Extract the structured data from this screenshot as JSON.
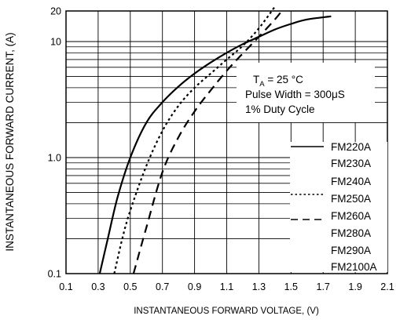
{
  "chart_data": {
    "type": "line",
    "title": "",
    "xlabel": "INSTANTANEOUS FORWARD VOLTAGE, (V)",
    "ylabel": "INSTANTANEOUS FORWARD CURRENT, (A)",
    "xlim": [
      0.1,
      2.1
    ],
    "ylim": [
      0.1,
      20
    ],
    "y_scale": "log",
    "grid": true,
    "x_ticks": [
      "0.1",
      "0.3",
      "0.5",
      "0.7",
      "0.9",
      "1.1",
      "1.3",
      "1.5",
      "1.7",
      "1.9",
      "2.1"
    ],
    "y_ticks": [
      {
        "value": 0.1,
        "label": "0.1"
      },
      {
        "value": 1.0,
        "label": "1.0"
      },
      {
        "value": 10,
        "label": "10"
      },
      {
        "value": 20,
        "label": "20"
      }
    ],
    "annotation": {
      "ta_prefix": "T",
      "ta_sub": "A",
      "ta_suffix": " = 25 °C",
      "pulse_width": "Pulse Width = 300μS",
      "duty_cycle": "1% Duty Cycle"
    },
    "legend": {
      "placement": "bottom-right",
      "groups": [
        {
          "style": "solid",
          "labels": [
            "FM220A",
            "FM230A",
            "FM240A"
          ]
        },
        {
          "style": "dotted",
          "labels": [
            "FM250A"
          ]
        },
        {
          "style": "dashed",
          "labels": [
            "FM260A",
            "FM280A",
            "FM290A",
            "FM2100A"
          ]
        }
      ]
    },
    "series": [
      {
        "style": "solid",
        "x": [
          0.31,
          0.36,
          0.42,
          0.5,
          0.6,
          0.7,
          0.8,
          0.9,
          1.0,
          1.1,
          1.2,
          1.3,
          1.4,
          1.5,
          1.6,
          1.75
        ],
        "y": [
          0.1,
          0.2,
          0.45,
          1.0,
          2.0,
          3.0,
          4.1,
          5.3,
          6.6,
          8.0,
          9.5,
          11,
          12.7,
          14.2,
          15.5,
          16.5
        ]
      },
      {
        "style": "dotted",
        "x": [
          0.4,
          0.45,
          0.5,
          0.6,
          0.7,
          0.8,
          0.9,
          1.0,
          1.1,
          1.2,
          1.3,
          1.4
        ],
        "y": [
          0.1,
          0.2,
          0.35,
          0.85,
          1.7,
          2.8,
          4.0,
          5.3,
          7.0,
          9.2,
          13,
          20
        ]
      },
      {
        "style": "dashed",
        "x": [
          0.52,
          0.6,
          0.7,
          0.8,
          0.9,
          1.0,
          1.1,
          1.2,
          1.3,
          1.4,
          1.45
        ],
        "y": [
          0.1,
          0.25,
          0.75,
          1.5,
          2.5,
          3.8,
          5.6,
          7.9,
          11,
          15.5,
          19
        ]
      }
    ]
  }
}
